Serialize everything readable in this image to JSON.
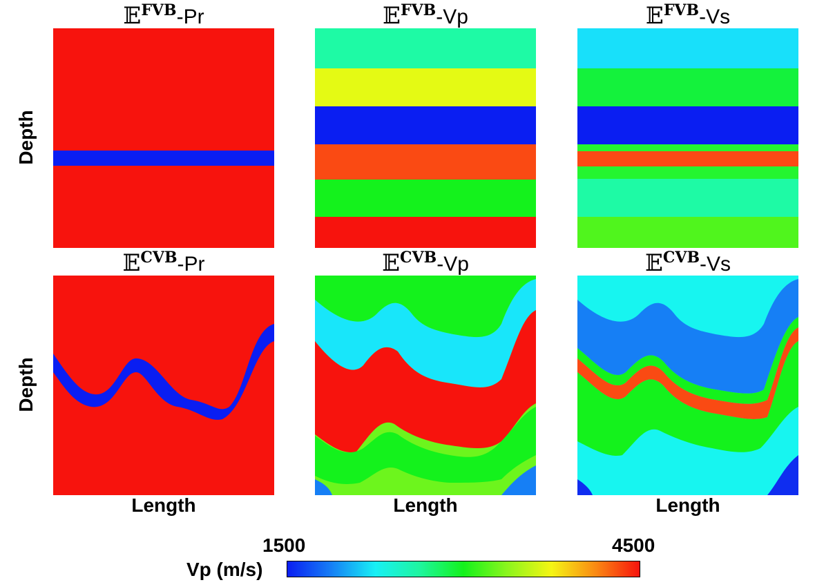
{
  "colors": {
    "red": "#f7130d",
    "blue": "#0a1ef2",
    "blue2": "#0f2df0",
    "dodger": "#167ff5",
    "cyan": "#18e6fa",
    "lightcyan": "#17f5f0",
    "springgreen": "#1efaa5",
    "mint": "#26fab0",
    "green": "#14f21c",
    "lime": "#50f51d",
    "lime2": "#6df51d",
    "yellow": "#e4fa14",
    "orange": "#fa4a13",
    "orange2": "#fc4915"
  },
  "row1": {
    "pr": {
      "title_main": "𝔼",
      "title_sup": "FVB",
      "title_suffix": "-Pr"
    },
    "vp": {
      "title_main": "𝔼",
      "title_sup": "FVB",
      "title_suffix": "-Vp"
    },
    "vs": {
      "title_main": "𝔼",
      "title_sup": "FVB",
      "title_suffix": "-Vs"
    }
  },
  "row2": {
    "pr": {
      "title_main": "𝔼",
      "title_sup": "CVB",
      "title_suffix": "-Pr"
    },
    "vp": {
      "title_main": "𝔼",
      "title_sup": "CVB",
      "title_suffix": "-Vp"
    },
    "vs": {
      "title_main": "𝔼",
      "title_sup": "CVB",
      "title_suffix": "-Vs"
    }
  },
  "axes": {
    "ylabel": "Depth",
    "xlabel": "Length"
  },
  "colorbar": {
    "label": "Vp (m/s)",
    "min": "1500",
    "max": "4500",
    "stops": [
      "#0a1ef2",
      "#167ff5",
      "#18f0f5",
      "#1ef5a0",
      "#14f21c",
      "#8cf51d",
      "#f5f514",
      "#fa8a13",
      "#f7130d"
    ]
  }
}
